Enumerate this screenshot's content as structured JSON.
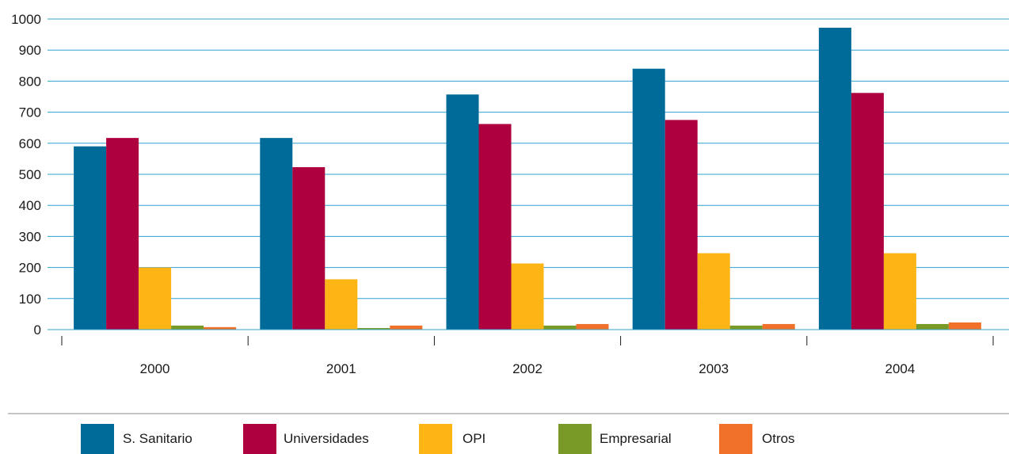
{
  "chart_data": {
    "type": "bar",
    "title": "",
    "xlabel": "",
    "ylabel": "",
    "categories": [
      "2000",
      "2001",
      "2002",
      "2003",
      "2004"
    ],
    "ylim": [
      0,
      1000
    ],
    "yticks": [
      0,
      100,
      200,
      300,
      400,
      500,
      600,
      700,
      800,
      900,
      1000
    ],
    "grid": true,
    "legend_position": "bottom",
    "series": [
      {
        "name": "S. Sanitario",
        "color": "#006a98",
        "values": [
          590,
          617,
          757,
          840,
          972
        ]
      },
      {
        "name": "Universidades",
        "color": "#ae003f",
        "values": [
          617,
          523,
          662,
          675,
          762
        ]
      },
      {
        "name": "OPI",
        "color": "#fdb515",
        "values": [
          200,
          162,
          213,
          246,
          246
        ]
      },
      {
        "name": "Empresarial",
        "color": "#7a9a28",
        "values": [
          13,
          5,
          13,
          13,
          18
        ]
      },
      {
        "name": "Otros",
        "color": "#f1712a",
        "values": [
          8,
          13,
          18,
          18,
          23
        ]
      }
    ],
    "colors": {
      "grid": "#2ea3cf",
      "axis": "#1a1a1a",
      "separator": "#888888"
    }
  }
}
